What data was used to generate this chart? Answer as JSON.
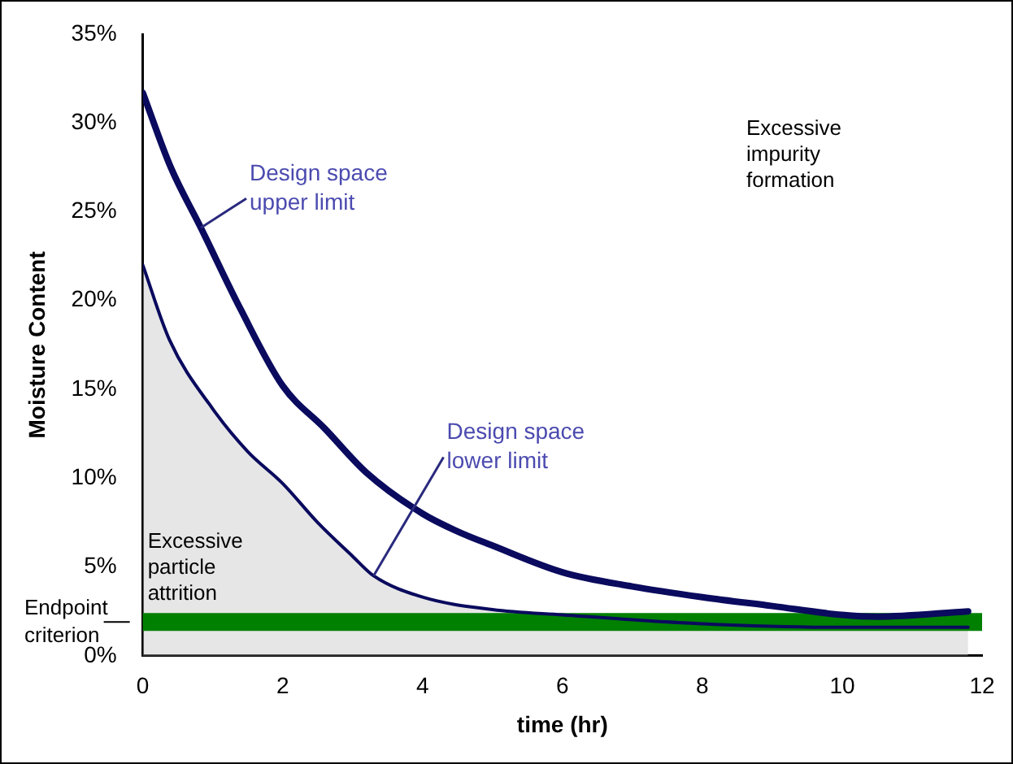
{
  "chart_data": {
    "type": "line",
    "xlabel": "time (hr)",
    "ylabel": "Moisture Content",
    "xlim": [
      0,
      12
    ],
    "xticks": [
      0,
      2,
      4,
      6,
      8,
      10,
      12
    ],
    "ylim": [
      0,
      35
    ],
    "yticks": [
      {
        "value": 0,
        "label": "0%"
      },
      {
        "value": 5,
        "label": "5%"
      },
      {
        "value": 10,
        "label": "10%"
      },
      {
        "value": 15,
        "label": "15%"
      },
      {
        "value": 20,
        "label": "20%"
      },
      {
        "value": 25,
        "label": "25%"
      },
      {
        "value": 30,
        "label": "30%"
      },
      {
        "value": 35,
        "label": "35%"
      }
    ],
    "grid": false,
    "legend": false,
    "marker": "none",
    "series": [
      {
        "color": "#0a0a5e",
        "x": [
          0,
          0.4,
          0.83,
          1.4,
          2,
          2.6,
          3.2,
          4,
          4.5,
          5,
          6,
          7,
          8,
          9,
          10,
          10.5,
          11.8
        ],
        "values": [
          31.7,
          27.5,
          24.1,
          19.5,
          15.2,
          12.8,
          10.3,
          8.0,
          7.0,
          6.2,
          4.7,
          3.9,
          3.3,
          2.8,
          2.3,
          2.2,
          2.5
        ]
      },
      {
        "type": "area",
        "color": "#0a0a5e",
        "x": [
          0,
          0.38,
          1,
          1.5,
          2,
          2.5,
          3,
          3.3,
          4,
          5,
          6,
          8,
          10,
          11.8
        ],
        "values": [
          22.0,
          17.8,
          13.9,
          11.5,
          9.7,
          7.5,
          5.6,
          4.5,
          3.3,
          2.6,
          2.3,
          1.8,
          1.6,
          1.6
        ]
      }
    ],
    "bands": [
      {
        "axis": "y",
        "from": 1.4,
        "to": 2.4,
        "label": "Endpoint criterion",
        "color": "#008000"
      }
    ],
    "annotations": [
      {
        "text": "Design space upper limit",
        "x": 0.83,
        "y": 24.1
      },
      {
        "text": "Design space lower limit",
        "x": 3.3,
        "y": 4.5
      },
      "Excessive impurity formation",
      "Excessive particle attrition"
    ]
  }
}
